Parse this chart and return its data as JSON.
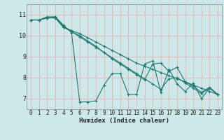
{
  "xlabel": "Humidex (Indice chaleur)",
  "bg_color": "#cce8e8",
  "grid_color_h": "#e8b8b8",
  "grid_color_v": "#e8b8b8",
  "line_color": "#1a7a6e",
  "xlim": [
    -0.5,
    23.5
  ],
  "ylim": [
    6.5,
    11.5
  ],
  "yticks": [
    7,
    8,
    9,
    10,
    11
  ],
  "xticks": [
    0,
    1,
    2,
    3,
    4,
    5,
    6,
    7,
    8,
    9,
    10,
    11,
    12,
    13,
    14,
    15,
    16,
    17,
    18,
    19,
    20,
    21,
    22,
    23
  ],
  "lines": [
    {
      "x": [
        0,
        1,
        2,
        3,
        4,
        5,
        6,
        7,
        8,
        9,
        10,
        11,
        12,
        13,
        14,
        15,
        16,
        17,
        18,
        19,
        20,
        21,
        22,
        23
      ],
      "y": [
        10.75,
        10.75,
        10.9,
        10.9,
        10.5,
        10.15,
        6.85,
        6.85,
        6.9,
        7.65,
        8.2,
        8.2,
        7.2,
        7.2,
        8.65,
        8.8,
        7.3,
        8.4,
        7.7,
        7.35,
        7.75,
        7.0,
        7.5,
        7.2
      ]
    },
    {
      "x": [
        0,
        1,
        2,
        3,
        4,
        5,
        6,
        7,
        8,
        9,
        10,
        11,
        12,
        13,
        14,
        15,
        16,
        17,
        18,
        19,
        20,
        21,
        22,
        23
      ],
      "y": [
        10.75,
        10.75,
        10.85,
        10.85,
        10.4,
        10.25,
        10.1,
        9.9,
        9.7,
        9.5,
        9.3,
        9.1,
        8.9,
        8.7,
        8.55,
        8.4,
        8.25,
        8.1,
        7.95,
        7.8,
        7.65,
        7.5,
        7.35,
        7.2
      ]
    },
    {
      "x": [
        0,
        1,
        2,
        3,
        4,
        5,
        6,
        7,
        8,
        9,
        10,
        11,
        12,
        13,
        14,
        15,
        16,
        17,
        18,
        19,
        20,
        21,
        22,
        23
      ],
      "y": [
        10.75,
        10.75,
        10.85,
        10.85,
        10.4,
        10.2,
        10.0,
        9.75,
        9.5,
        9.2,
        8.9,
        8.65,
        8.4,
        8.15,
        7.9,
        8.65,
        8.7,
        8.3,
        8.5,
        7.8,
        7.6,
        7.3,
        7.55,
        7.2
      ]
    },
    {
      "x": [
        0,
        1,
        2,
        3,
        4,
        5,
        6,
        7,
        8,
        9,
        10,
        11,
        12,
        13,
        14,
        15,
        16,
        17,
        18,
        19,
        20,
        21,
        22,
        23
      ],
      "y": [
        10.75,
        10.75,
        10.85,
        10.9,
        10.45,
        10.2,
        9.95,
        9.7,
        9.45,
        9.2,
        8.95,
        8.7,
        8.45,
        8.2,
        7.95,
        7.7,
        7.45,
        7.95,
        8.0,
        7.75,
        7.5,
        7.25,
        7.5,
        7.2
      ]
    }
  ]
}
